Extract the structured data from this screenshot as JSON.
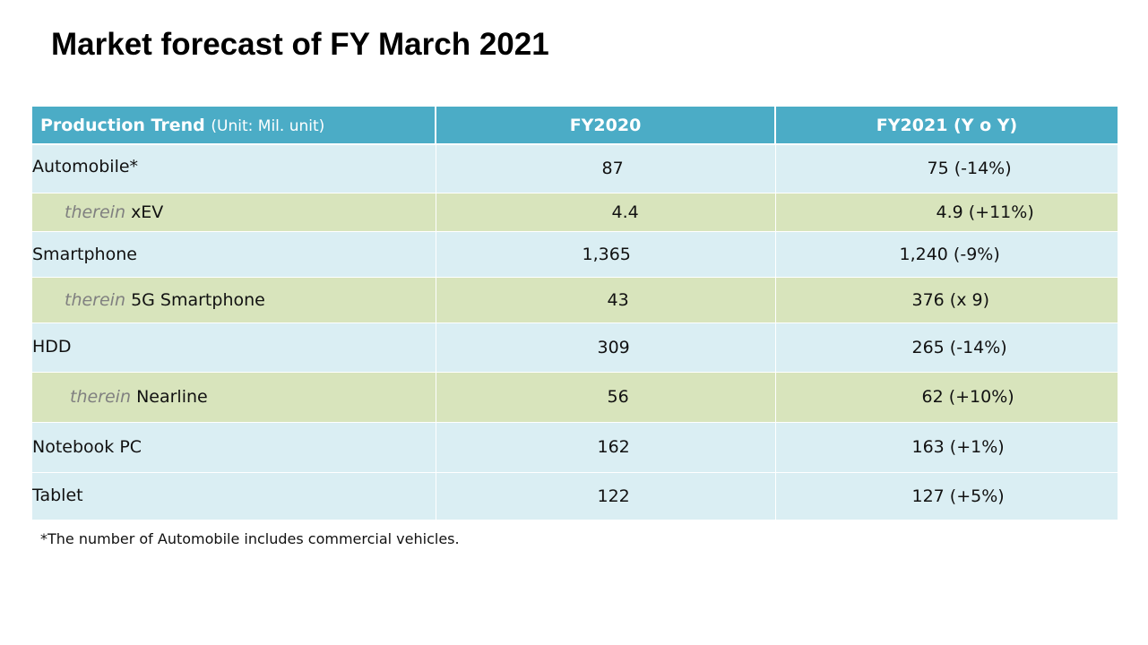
{
  "title": "Market forecast of FY March 2021",
  "table": {
    "header": {
      "label": "Production Trend",
      "unit": "(Unit: Mil. unit)",
      "col_fy2020": "FY2020",
      "col_fy2021": "FY2021 (Y o Y)"
    },
    "rows": [
      {
        "therein": "",
        "label": "Automobile*",
        "fy2020": "87",
        "fy2021": "75 (-14%)"
      },
      {
        "therein": "therein",
        "label": "xEV",
        "fy2020": "4.4",
        "fy2021": "4.9 (+11%)"
      },
      {
        "therein": "",
        "label": "Smartphone",
        "fy2020": "1,365",
        "fy2021": "1,240 (-9%)"
      },
      {
        "therein": "therein",
        "label": "5G Smartphone",
        "fy2020": "43",
        "fy2021": "376 (x 9)"
      },
      {
        "therein": "",
        "label": "HDD",
        "fy2020": "309",
        "fy2021": "265 (-14%)"
      },
      {
        "therein": "therein",
        "label": "Nearline",
        "fy2020": "56",
        "fy2021": "62 (+10%)"
      },
      {
        "therein": "",
        "label": "Notebook PC",
        "fy2020": "162",
        "fy2021": "163 (+1%)"
      },
      {
        "therein": "",
        "label": "Tablet",
        "fy2020": "122",
        "fy2021": "127 (+5%)"
      }
    ]
  },
  "footnote": "*The number of Automobile includes commercial vehicles.",
  "colors": {
    "header_bg": "#4bacc6",
    "row_blue": "#daeef3",
    "row_green": "#d8e4bc",
    "therein_text": "#808080"
  }
}
